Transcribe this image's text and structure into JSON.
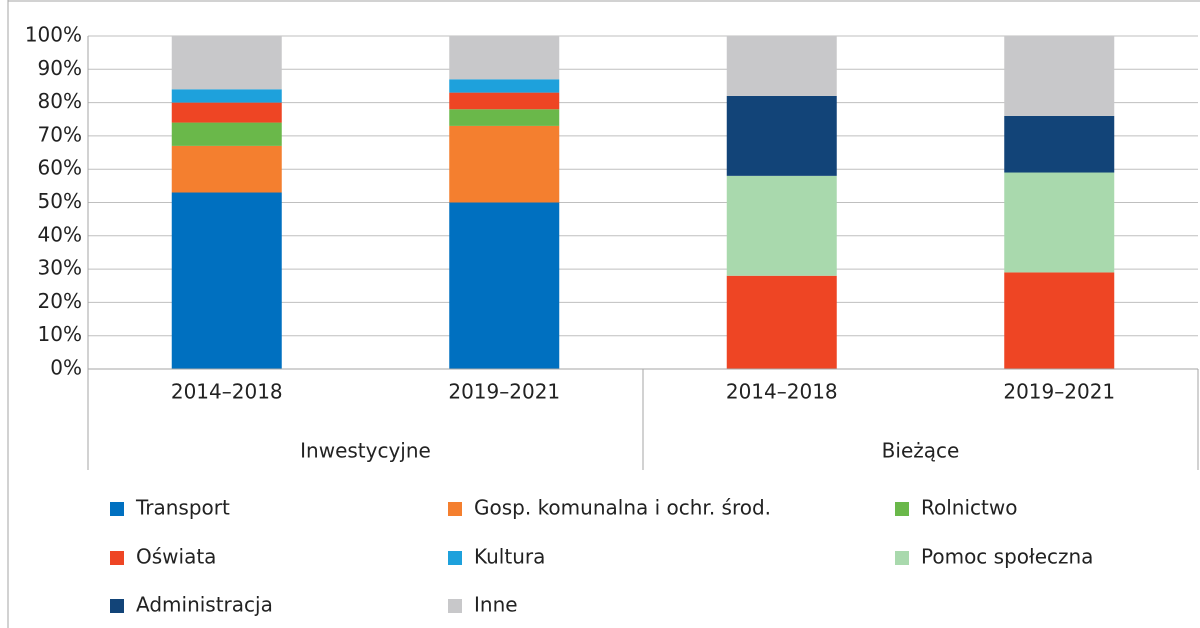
{
  "chart_data": {
    "type": "stacked_bar",
    "categories": [
      "2014–2018",
      "2019–2021",
      "2014–2018",
      "2019–2021"
    ],
    "groups": [
      "Inwestycyjne",
      "Bieżące"
    ],
    "series": [
      {
        "name": "Transport",
        "color": "#0070c0",
        "values": [
          53,
          50,
          0,
          0
        ]
      },
      {
        "name": "Gosp. komunalna i ochr. środ.",
        "color": "#f47f2f",
        "values": [
          14,
          23,
          0,
          0
        ]
      },
      {
        "name": "Rolnictwo",
        "color": "#6ab84a",
        "values": [
          7,
          5,
          0,
          0
        ]
      },
      {
        "name": "Oświata",
        "color": "#ee4524",
        "values": [
          6,
          5,
          28,
          29
        ]
      },
      {
        "name": "Kultura",
        "color": "#1ea1dc",
        "values": [
          4,
          4,
          0,
          0
        ]
      },
      {
        "name": "Pomoc społeczna",
        "color": "#a9d9ad",
        "values": [
          0,
          0,
          30,
          30
        ]
      },
      {
        "name": "Administracja",
        "color": "#124478",
        "values": [
          0,
          0,
          24,
          17
        ]
      },
      {
        "name": "Inne",
        "color": "#c8c8ca",
        "values": [
          16,
          13,
          18,
          24
        ]
      }
    ],
    "ylim": [
      0,
      100
    ],
    "yticks": [
      {
        "value": 0,
        "label": "0%"
      },
      {
        "value": 10,
        "label": "10%"
      },
      {
        "value": 20,
        "label": "20%"
      },
      {
        "value": 30,
        "label": "30%"
      },
      {
        "value": 40,
        "label": "40%"
      },
      {
        "value": 50,
        "label": "50%"
      },
      {
        "value": 60,
        "label": "60%"
      },
      {
        "value": 70,
        "label": "70%"
      },
      {
        "value": 80,
        "label": "80%"
      },
      {
        "value": 90,
        "label": "90%"
      },
      {
        "value": 100,
        "label": "100%"
      }
    ],
    "grid": true
  }
}
